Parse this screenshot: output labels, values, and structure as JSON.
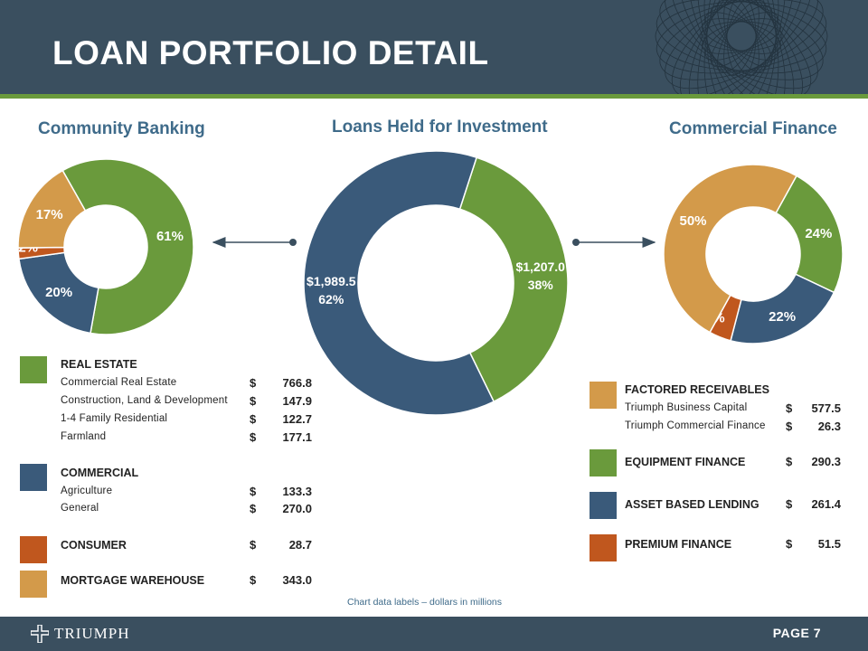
{
  "title": "LOAN PORTFOLIO DETAIL",
  "colors": {
    "green": "#6a9a3c",
    "blue": "#3a5a7a",
    "orange": "#c0571e",
    "tan": "#d39a4a",
    "header": "#3a4f5f",
    "title_blue": "#3f6b8a"
  },
  "chart_data": [
    {
      "type": "pie",
      "title": "Community Banking",
      "slices": [
        {
          "category": "Real Estate",
          "value": 61,
          "label": "61%"
        },
        {
          "category": "Commercial",
          "value": 20,
          "label": "20%"
        },
        {
          "category": "Consumer",
          "value": 2,
          "label": "2%"
        },
        {
          "category": "Mortgage Warehouse",
          "value": 17,
          "label": "17%"
        }
      ]
    },
    {
      "type": "pie",
      "title": "Loans Held for Investment",
      "slices": [
        {
          "category": "Commercial Finance",
          "value": 1207.0,
          "label": "$1,207.0",
          "pct": "38%"
        },
        {
          "category": "Community Banking",
          "value": 1989.5,
          "label": "$1,989.5",
          "pct": "62%"
        }
      ]
    },
    {
      "type": "pie",
      "title": "Commercial Finance",
      "slices": [
        {
          "category": "Equipment Finance",
          "value": 24,
          "label": "24%"
        },
        {
          "category": "Asset Based Lending",
          "value": 22,
          "label": "22%"
        },
        {
          "category": "Premium Finance",
          "value": 4,
          "label": "4%"
        },
        {
          "category": "Factored Receivables",
          "value": 50,
          "label": "50%"
        }
      ]
    }
  ],
  "left_legend": {
    "real_estate": {
      "label": "REAL ESTATE",
      "items": [
        {
          "label": "Commercial Real Estate",
          "currency": "$",
          "value": "766.8"
        },
        {
          "label": "Construction, Land & Development",
          "currency": "$",
          "value": "147.9"
        },
        {
          "label": "1-4 Family Residential",
          "currency": "$",
          "value": "122.7"
        },
        {
          "label": "Farmland",
          "currency": "$",
          "value": "177.1"
        }
      ]
    },
    "commercial": {
      "label": "COMMERCIAL",
      "items": [
        {
          "label": "Agriculture",
          "currency": "$",
          "value": "133.3"
        },
        {
          "label": "General",
          "currency": "$",
          "value": "270.0"
        }
      ]
    },
    "consumer": {
      "label": "CONSUMER",
      "currency": "$",
      "value": "28.7"
    },
    "mortgage": {
      "label": "MORTGAGE WAREHOUSE",
      "currency": "$",
      "value": "343.0"
    }
  },
  "right_legend": {
    "factored": {
      "label": "FACTORED RECEIVABLES",
      "items": [
        {
          "label": "Triumph Business Capital",
          "currency": "$",
          "value": "577.5"
        },
        {
          "label": "Triumph Commercial Finance",
          "currency": "$",
          "value": "26.3"
        }
      ]
    },
    "equipment": {
      "label": "EQUIPMENT FINANCE",
      "currency": "$",
      "value": "290.3"
    },
    "abl": {
      "label": "ASSET BASED LENDING",
      "currency": "$",
      "value": "261.4"
    },
    "premium": {
      "label": "PREMIUM FINANCE",
      "currency": "$",
      "value": "51.5"
    }
  },
  "footnote": "Chart data labels – dollars in millions",
  "footer": {
    "logo": "TRIUMPH",
    "page": "PAGE 7"
  }
}
